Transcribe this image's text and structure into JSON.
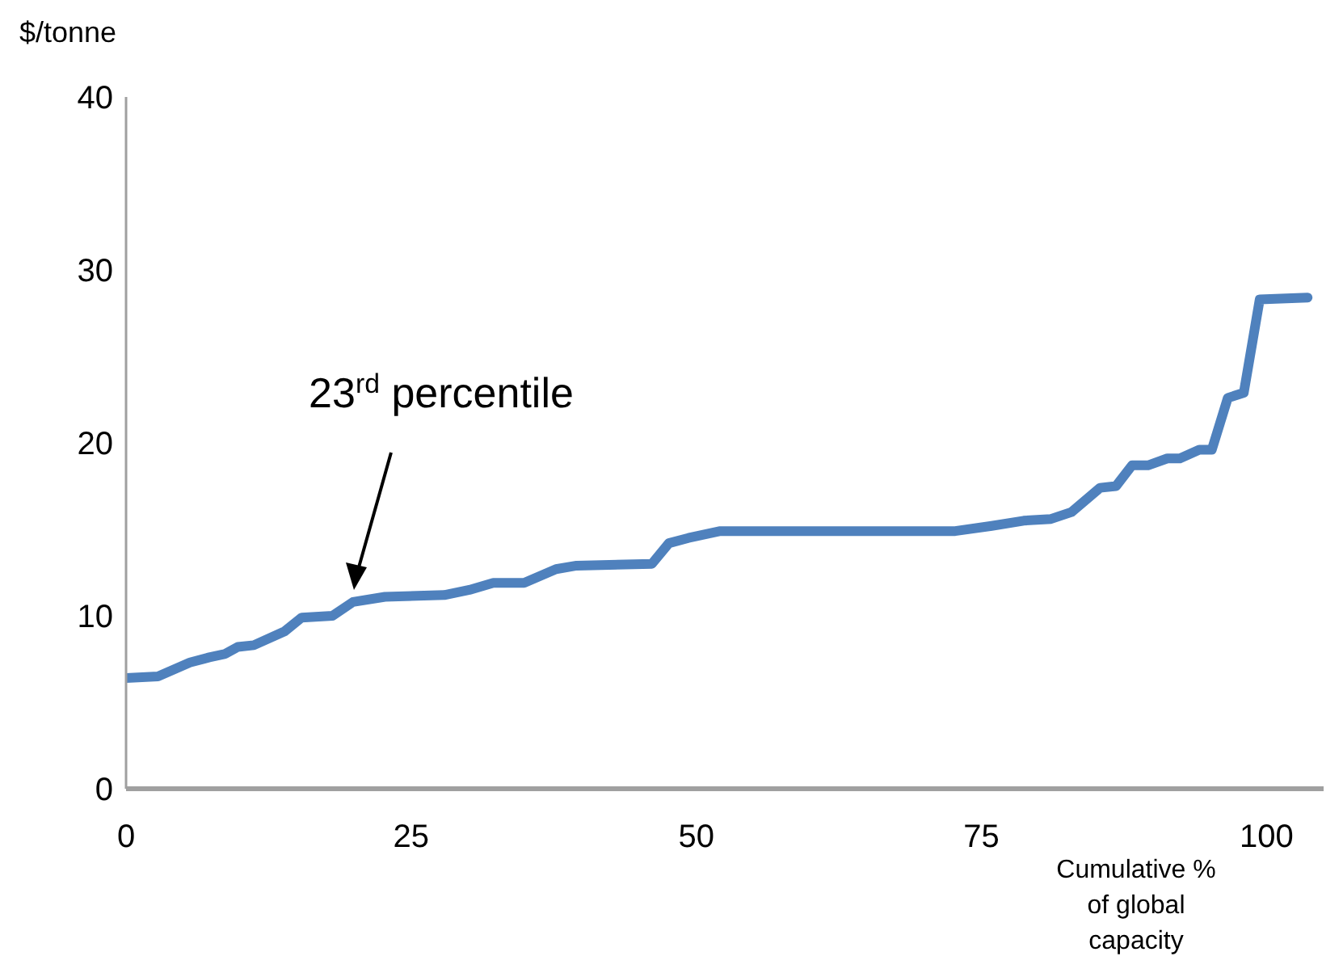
{
  "chart_data": {
    "type": "line",
    "ylabel": "$/tonne",
    "xlabel": "Cumulative % of global capacity",
    "x": [
      0,
      2.8,
      5.6,
      7.3,
      8.7,
      9.8,
      11.2,
      13.9,
      15.4,
      18.1,
      19.9,
      22.7,
      27.9,
      30.1,
      32.2,
      34.9,
      37.7,
      39.5,
      46.1,
      47.6,
      49.3,
      52.1,
      72.7,
      75.9,
      78.7,
      81.1,
      82.9,
      85.4,
      86.8,
      88.2,
      89.6,
      91.3,
      92.4,
      94.1,
      95.2,
      96.6,
      98,
      99.4,
      103.6
    ],
    "series": [
      {
        "color": "#4f81bd",
        "values": [
          6.4,
          6.5,
          7.3,
          7.6,
          7.8,
          8.2,
          8.3,
          9.1,
          9.9,
          10,
          10.8,
          11.1,
          11.2,
          11.5,
          11.9,
          11.9,
          12.7,
          12.9,
          13,
          14.2,
          14.5,
          14.9,
          14.9,
          15.2,
          15.5,
          15.6,
          16,
          17.4,
          17.5,
          18.7,
          18.7,
          19.1,
          19.1,
          19.6,
          19.6,
          22.6,
          22.9,
          28.3,
          28.4
        ]
      }
    ],
    "xlim": [
      0,
      105
    ],
    "xticks": [
      0,
      25,
      50,
      75,
      100
    ],
    "ylim": [
      0,
      40
    ],
    "yticks": [
      0,
      10,
      20,
      30,
      40
    ],
    "grid": false,
    "legend": false,
    "marker": "none",
    "line_style": "solid",
    "annotations": [
      "23$^{rd}$ percentile"
    ]
  }
}
